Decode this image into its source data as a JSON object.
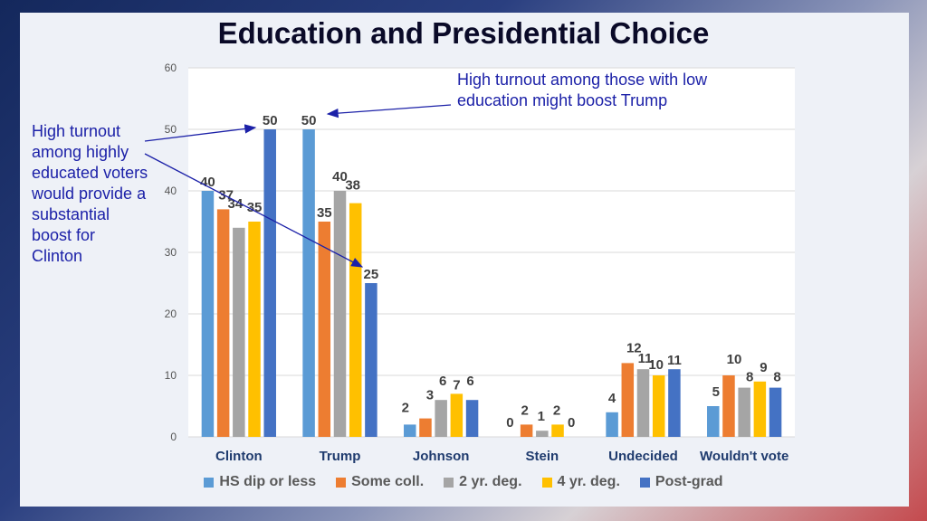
{
  "title": "Education and Presidential Choice",
  "annotations": {
    "left": "High turnout among highly educated voters would provide a substantial boost for Clinton",
    "right": "High turnout among those with low education might boost Trump"
  },
  "chart_data": {
    "type": "bar",
    "title": "Education and Presidential Choice",
    "categories": [
      "Clinton",
      "Trump",
      "Johnson",
      "Stein",
      "Undecided",
      "Wouldn't vote"
    ],
    "series": [
      {
        "name": "HS dip or less",
        "color": "#5b9bd5",
        "values": [
          40,
          50,
          2,
          0,
          4,
          5
        ]
      },
      {
        "name": "Some coll.",
        "color": "#ed7d31",
        "values": [
          37,
          35,
          3,
          2,
          12,
          10
        ]
      },
      {
        "name": "2 yr. deg.",
        "color": "#a5a5a5",
        "values": [
          34,
          40,
          6,
          1,
          11,
          8
        ]
      },
      {
        "name": "4 yr. deg.",
        "color": "#ffc000",
        "values": [
          35,
          38,
          7,
          2,
          10,
          9
        ]
      },
      {
        "name": "Post-grad",
        "color": "#4472c4",
        "values": [
          50,
          25,
          6,
          0,
          11,
          8
        ]
      }
    ],
    "ylim": [
      0,
      60
    ],
    "yticks": [
      0,
      10,
      20,
      30,
      40,
      50,
      60
    ],
    "grid": true,
    "legend": "bottom",
    "xlabel": "",
    "ylabel": ""
  }
}
